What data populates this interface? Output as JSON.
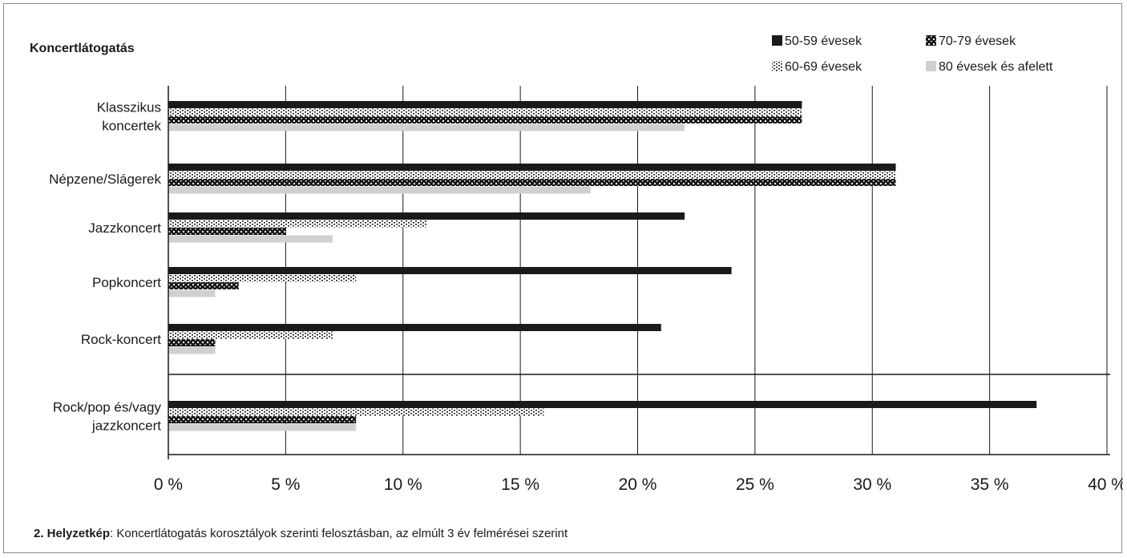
{
  "chart_data": {
    "type": "bar",
    "orientation": "horizontal",
    "title": "Koncertlátogatás",
    "categories": [
      [
        "Klasszikus",
        "koncertek"
      ],
      [
        "Népzene/Slágerek"
      ],
      [
        "Jazzkoncert"
      ],
      [
        "Popkoncert"
      ],
      [
        "Rock-koncert"
      ],
      [
        "Rock/pop és/vagy",
        "jazzkoncert"
      ]
    ],
    "series": [
      {
        "name": "50-59 évesek",
        "values": [
          27,
          31,
          22,
          24,
          21,
          37
        ],
        "color": "#1a1a1a",
        "pattern": "solid"
      },
      {
        "name": "60-69 évesek",
        "values": [
          27,
          31,
          11,
          8,
          7,
          16
        ],
        "color": "#1a1a1a",
        "pattern": "dotted"
      },
      {
        "name": "70-79 évesek",
        "values": [
          27,
          31,
          5,
          3,
          2,
          8
        ],
        "color": "#1a1a1a",
        "pattern": "checker"
      },
      {
        "name": "80 évesek és afelett",
        "values": [
          22,
          18,
          7,
          2,
          2,
          8
        ],
        "color": "#d0d0d0",
        "pattern": "solid"
      }
    ],
    "xlim": [
      0,
      40
    ],
    "xticks": [
      0,
      5,
      10,
      15,
      20,
      25,
      30,
      35,
      40
    ],
    "xtick_suffix": " %",
    "grid": "vertical",
    "legend_position": "top-right",
    "separator_before_category": 5
  },
  "caption": {
    "label": "2. Helyzetkép",
    "text": ": Koncertlátogatás korosztályok szerinti felosztásban, az elmúlt 3 év felmérései szerint"
  }
}
